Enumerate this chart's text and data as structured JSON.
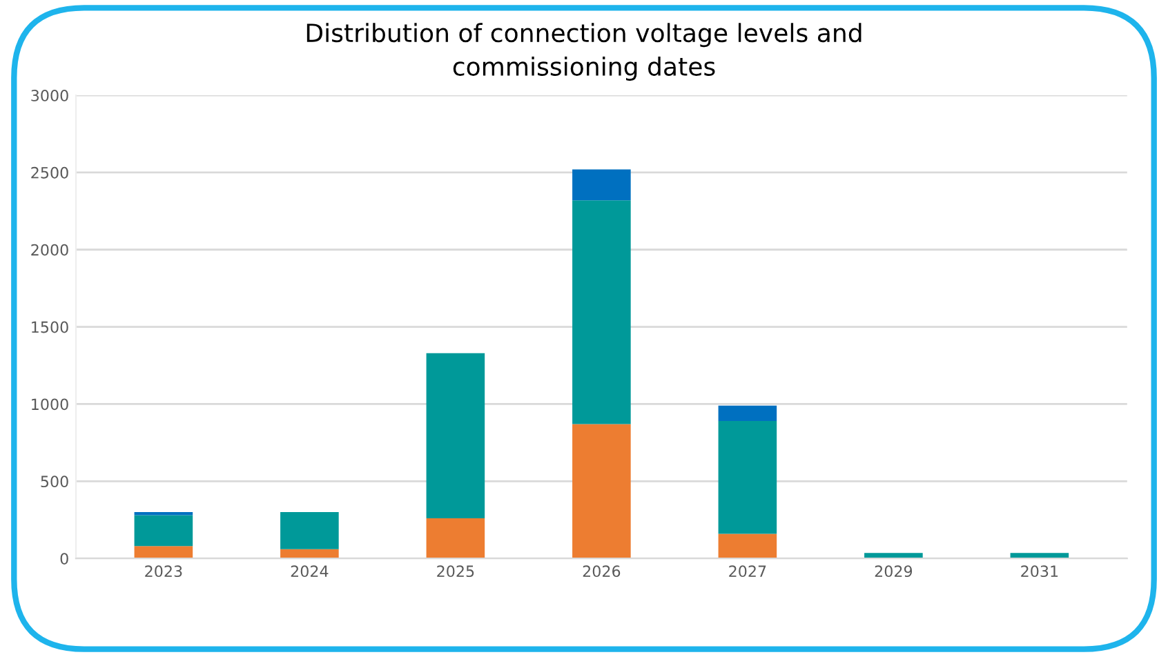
{
  "chart_data": {
    "type": "bar",
    "title": "Distribution of connection voltage levels and\ncommissioning dates",
    "stacked": true,
    "categories": [
      "2023",
      "2024",
      "2025",
      "2026",
      "2027",
      "2029",
      "2031"
    ],
    "series": [
      {
        "color": "#ed7d31",
        "values": [
          80,
          60,
          260,
          870,
          160,
          null,
          null
        ]
      },
      {
        "color": "#009999",
        "values": [
          200,
          240,
          1070,
          1450,
          730,
          35,
          35
        ]
      },
      {
        "color": "#0070c0",
        "values": [
          20,
          null,
          null,
          200,
          100,
          null,
          null
        ]
      }
    ],
    "ylim": [
      0,
      3000
    ],
    "yticks": [
      0,
      500,
      1000,
      1500,
      2000,
      2500,
      3000
    ],
    "grid": "y"
  }
}
